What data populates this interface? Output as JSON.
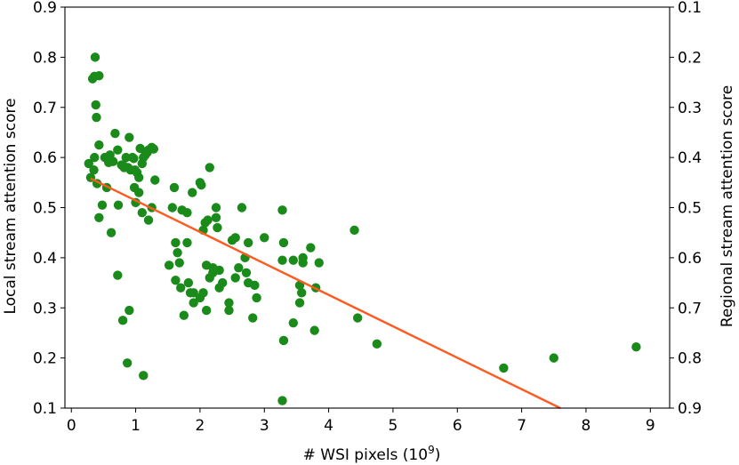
{
  "chart_data": {
    "type": "scatter",
    "title": "",
    "xlabel": "# WSI pixels (10",
    "xlabel_exponent": "9",
    "xlabel_suffix": ")",
    "ylabel": "Local stream attention score",
    "y2label": "Regional stream attention score",
    "xlim": [
      -0.1,
      9.3
    ],
    "ylim": [
      0.1,
      0.9
    ],
    "y2lim": [
      0.9,
      0.1
    ],
    "y2_inverted": true,
    "grid": false,
    "xticks": [
      0,
      1,
      2,
      3,
      4,
      5,
      6,
      7,
      8,
      9
    ],
    "xtick_labels": [
      "0",
      "1",
      "2",
      "3",
      "4",
      "5",
      "6",
      "7",
      "8",
      "9"
    ],
    "yticks": [
      0.1,
      0.2,
      0.3,
      0.4,
      0.5,
      0.6,
      0.7,
      0.8,
      0.9
    ],
    "ytick_labels": [
      "0.1",
      "0.2",
      "0.3",
      "0.4",
      "0.5",
      "0.6",
      "0.7",
      "0.8",
      "0.9"
    ],
    "y2tick_labels": [
      "0.9",
      "0.8",
      "0.7",
      "0.6",
      "0.5",
      "0.4",
      "0.3",
      "0.2",
      "0.1"
    ],
    "marker_color": "#1a8a1a",
    "line_color": "#ff5a1f",
    "fit_line": {
      "x": [
        0.3,
        7.6
      ],
      "y": [
        0.558,
        0.1
      ]
    },
    "x": [
      0.37,
      0.33,
      0.36,
      0.43,
      0.38,
      0.39,
      0.43,
      0.27,
      0.3,
      0.4,
      0.36,
      0.35,
      0.52,
      0.58,
      0.6,
      0.65,
      0.68,
      0.72,
      0.78,
      0.82,
      0.85,
      0.9,
      0.92,
      0.95,
      0.97,
      0.99,
      1.02,
      1.05,
      1.07,
      1.1,
      1.12,
      1.15,
      1.18,
      1.2,
      1.25,
      1.28,
      0.43,
      0.48,
      0.55,
      0.62,
      0.73,
      0.8,
      0.88,
      0.98,
      1.0,
      1.05,
      1.1,
      1.2,
      1.25,
      1.3,
      0.72,
      0.8,
      0.9,
      0.87,
      1.12,
      1.6,
      1.62,
      1.65,
      1.72,
      1.75,
      1.8,
      1.82,
      1.85,
      1.88,
      1.9,
      2.0,
      2.02,
      2.05,
      2.08,
      2.1,
      2.12,
      2.15,
      2.2,
      2.25,
      2.27,
      2.3,
      2.35,
      2.45,
      2.5,
      2.55,
      2.65,
      2.7,
      2.75,
      2.82,
      2.88,
      3.0,
      3.28,
      3.3,
      3.45,
      3.55,
      3.58,
      3.6,
      3.72,
      3.78,
      3.85,
      1.52,
      1.57,
      1.62,
      1.68,
      1.7,
      1.8,
      1.9,
      2.0,
      2.05,
      2.1,
      2.15,
      2.2,
      2.25,
      2.3,
      2.45,
      2.55,
      2.6,
      2.72,
      2.75,
      2.85,
      3.3,
      3.45,
      3.55,
      3.6,
      3.8,
      4.4,
      4.45,
      4.75,
      6.72,
      7.5,
      8.78,
      3.28,
      3.28
    ],
    "y": [
      0.8,
      0.757,
      0.762,
      0.763,
      0.705,
      0.68,
      0.625,
      0.588,
      0.56,
      0.548,
      0.6,
      0.575,
      0.6,
      0.59,
      0.605,
      0.592,
      0.648,
      0.615,
      0.585,
      0.58,
      0.6,
      0.64,
      0.575,
      0.6,
      0.598,
      0.575,
      0.57,
      0.56,
      0.618,
      0.588,
      0.6,
      0.605,
      0.61,
      0.615,
      0.62,
      0.617,
      0.48,
      0.505,
      0.54,
      0.45,
      0.505,
      0.585,
      0.58,
      0.54,
      0.51,
      0.53,
      0.49,
      0.475,
      0.5,
      0.555,
      0.365,
      0.275,
      0.295,
      0.19,
      0.165,
      0.54,
      0.43,
      0.41,
      0.495,
      0.285,
      0.49,
      0.35,
      0.33,
      0.53,
      0.31,
      0.55,
      0.545,
      0.455,
      0.47,
      0.385,
      0.475,
      0.58,
      0.37,
      0.5,
      0.46,
      0.375,
      0.35,
      0.31,
      0.435,
      0.44,
      0.5,
      0.4,
      0.43,
      0.28,
      0.32,
      0.44,
      0.495,
      0.43,
      0.27,
      0.31,
      0.33,
      0.39,
      0.42,
      0.255,
      0.39,
      0.385,
      0.5,
      0.355,
      0.39,
      0.34,
      0.43,
      0.33,
      0.32,
      0.33,
      0.295,
      0.36,
      0.38,
      0.48,
      0.34,
      0.295,
      0.36,
      0.38,
      0.37,
      0.35,
      0.345,
      0.235,
      0.395,
      0.345,
      0.4,
      0.34,
      0.455,
      0.28,
      0.228,
      0.18,
      0.2,
      0.222,
      0.115,
      0.395
    ]
  }
}
